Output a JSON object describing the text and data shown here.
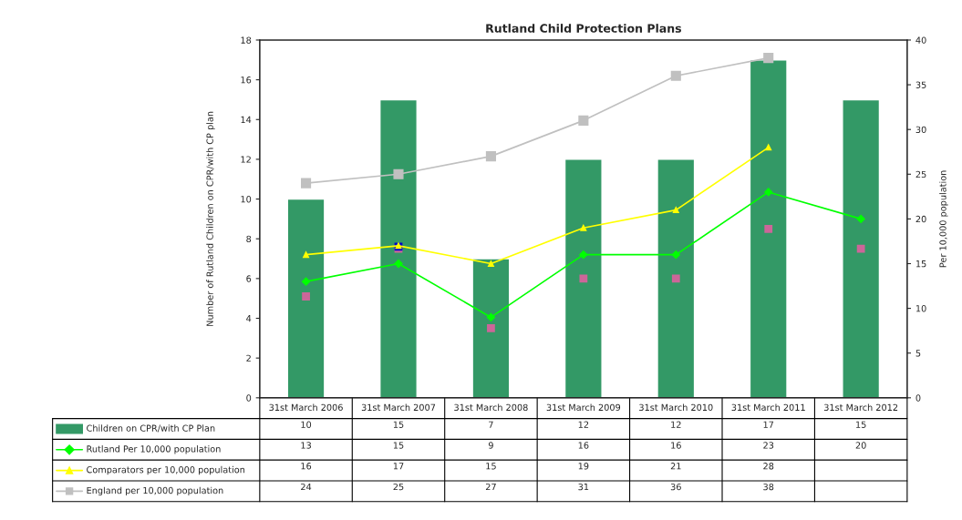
{
  "chart_data": {
    "type": "bar",
    "title": "Rutland Child Protection Plans",
    "categories": [
      "31st March 2006",
      "31st March 2007",
      "31st March 2008",
      "31st March 2009",
      "31st March 2010",
      "31st March 2011",
      "31st March 2012"
    ],
    "ylabel": "Number of Rutland Children on CPR/with CP plan",
    "y2label": "Per 10,000 population",
    "ylim": [
      0,
      18
    ],
    "yticks": [
      0,
      2,
      4,
      6,
      8,
      10,
      12,
      14,
      16,
      18
    ],
    "y2lim": [
      0,
      40
    ],
    "y2ticks": [
      0,
      5,
      10,
      15,
      20,
      25,
      30,
      35,
      40
    ],
    "series": [
      {
        "name": "Children on CPR/with CP Plan",
        "color": "#339966",
        "values": [
          10,
          15,
          7,
          12,
          12,
          17,
          15
        ],
        "value_labels": [
          "10",
          "15",
          "7",
          "12",
          "12",
          "17",
          "15"
        ]
      },
      {
        "name": "Rutland Per 10,000 population",
        "type": "line",
        "axis": "y2",
        "color": "#00ff00",
        "marker": "diamond",
        "values": [
          13,
          15,
          9,
          16,
          16,
          23,
          20
        ],
        "value_labels": [
          "13",
          "15",
          "9",
          "16",
          "16",
          "23",
          "20"
        ]
      },
      {
        "name": "Comparators per 10,000 population",
        "type": "line",
        "axis": "y2",
        "color": "#ffff00",
        "marker": "triangle",
        "values": [
          16,
          17,
          15,
          19,
          21,
          28,
          null
        ],
        "value_labels": [
          "16",
          "17",
          "15",
          "19",
          "21",
          "28",
          null
        ]
      },
      {
        "name": "England per 10,000 population",
        "type": "line",
        "axis": "y2",
        "color": "#c0c0c0",
        "marker": "square",
        "values": [
          24,
          25,
          27,
          31,
          36,
          38,
          null
        ],
        "value_labels": [
          "24",
          "25",
          "27",
          "31",
          "36",
          "38",
          null
        ]
      },
      {
        "type": "scatter",
        "color": "#cc6699",
        "marker": "square",
        "values": [
          5.1,
          7.5,
          3.5,
          6.0,
          6.0,
          8.5,
          7.5
        ]
      },
      {
        "type": "scatter",
        "color": "#0000cc",
        "marker": "square",
        "values": [
          null,
          7.6,
          null,
          null,
          null,
          null,
          null
        ]
      }
    ],
    "legend": "bottom"
  }
}
